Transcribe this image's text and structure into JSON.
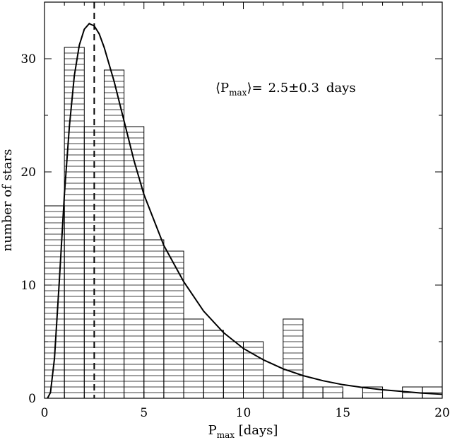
{
  "chart_data": {
    "type": "bar",
    "subtype": "histogram-with-fit",
    "xlabel": {
      "main": "P",
      "sub": "max",
      "suffix": " [days]"
    },
    "ylabel": "number of stars",
    "xlim": [
      0,
      20
    ],
    "ylim": [
      0,
      35
    ],
    "x_ticks": [
      0,
      5,
      10,
      15,
      20
    ],
    "y_ticks": [
      0,
      10,
      20,
      30
    ],
    "grid": false,
    "bin_width": 1,
    "bins": [
      {
        "x0": 0,
        "x1": 1,
        "value": 17
      },
      {
        "x0": 1,
        "x1": 2,
        "value": 31
      },
      {
        "x0": 2,
        "x1": 3,
        "value": 24
      },
      {
        "x0": 3,
        "x1": 4,
        "value": 29
      },
      {
        "x0": 4,
        "x1": 5,
        "value": 24
      },
      {
        "x0": 5,
        "x1": 6,
        "value": 14
      },
      {
        "x0": 6,
        "x1": 7,
        "value": 13
      },
      {
        "x0": 7,
        "x1": 8,
        "value": 7
      },
      {
        "x0": 8,
        "x1": 9,
        "value": 6
      },
      {
        "x0": 9,
        "x1": 10,
        "value": 5
      },
      {
        "x0": 10,
        "x1": 11,
        "value": 5
      },
      {
        "x0": 11,
        "x1": 12,
        "value": 2
      },
      {
        "x0": 12,
        "x1": 13,
        "value": 7
      },
      {
        "x0": 13,
        "x1": 14,
        "value": 1
      },
      {
        "x0": 14,
        "x1": 15,
        "value": 1
      },
      {
        "x0": 15,
        "x1": 16,
        "value": 0
      },
      {
        "x0": 16,
        "x1": 17,
        "value": 1
      },
      {
        "x0": 17,
        "x1": 18,
        "value": 0
      },
      {
        "x0": 18,
        "x1": 19,
        "value": 1
      },
      {
        "x0": 19,
        "x1": 20,
        "value": 1
      }
    ],
    "fit_curve": {
      "x": [
        0.15,
        0.3,
        0.5,
        0.75,
        1.0,
        1.25,
        1.5,
        1.75,
        2.0,
        2.25,
        2.5,
        2.75,
        3.0,
        3.5,
        4.0,
        4.5,
        5.0,
        6.0,
        7.0,
        8.0,
        9.0,
        10.0,
        11.0,
        12.0,
        13.0,
        14.0,
        15.0,
        16.0,
        17.0,
        18.0,
        19.0,
        20.0
      ],
      "y": [
        0.0,
        0.5,
        3.5,
        10.5,
        18.0,
        24.0,
        28.5,
        31.2,
        32.6,
        33.1,
        32.9,
        32.2,
        31.0,
        28.0,
        24.5,
        21.0,
        18.0,
        13.5,
        10.3,
        7.7,
        5.8,
        4.4,
        3.4,
        2.6,
        2.0,
        1.55,
        1.2,
        0.95,
        0.75,
        0.6,
        0.45,
        0.35
      ]
    },
    "peak_marker_x": 2.5,
    "annotation": {
      "open": "⟨P",
      "sub": "max",
      "close": "⟩=",
      "value": "2.5±0.3",
      "unit": "days"
    }
  }
}
